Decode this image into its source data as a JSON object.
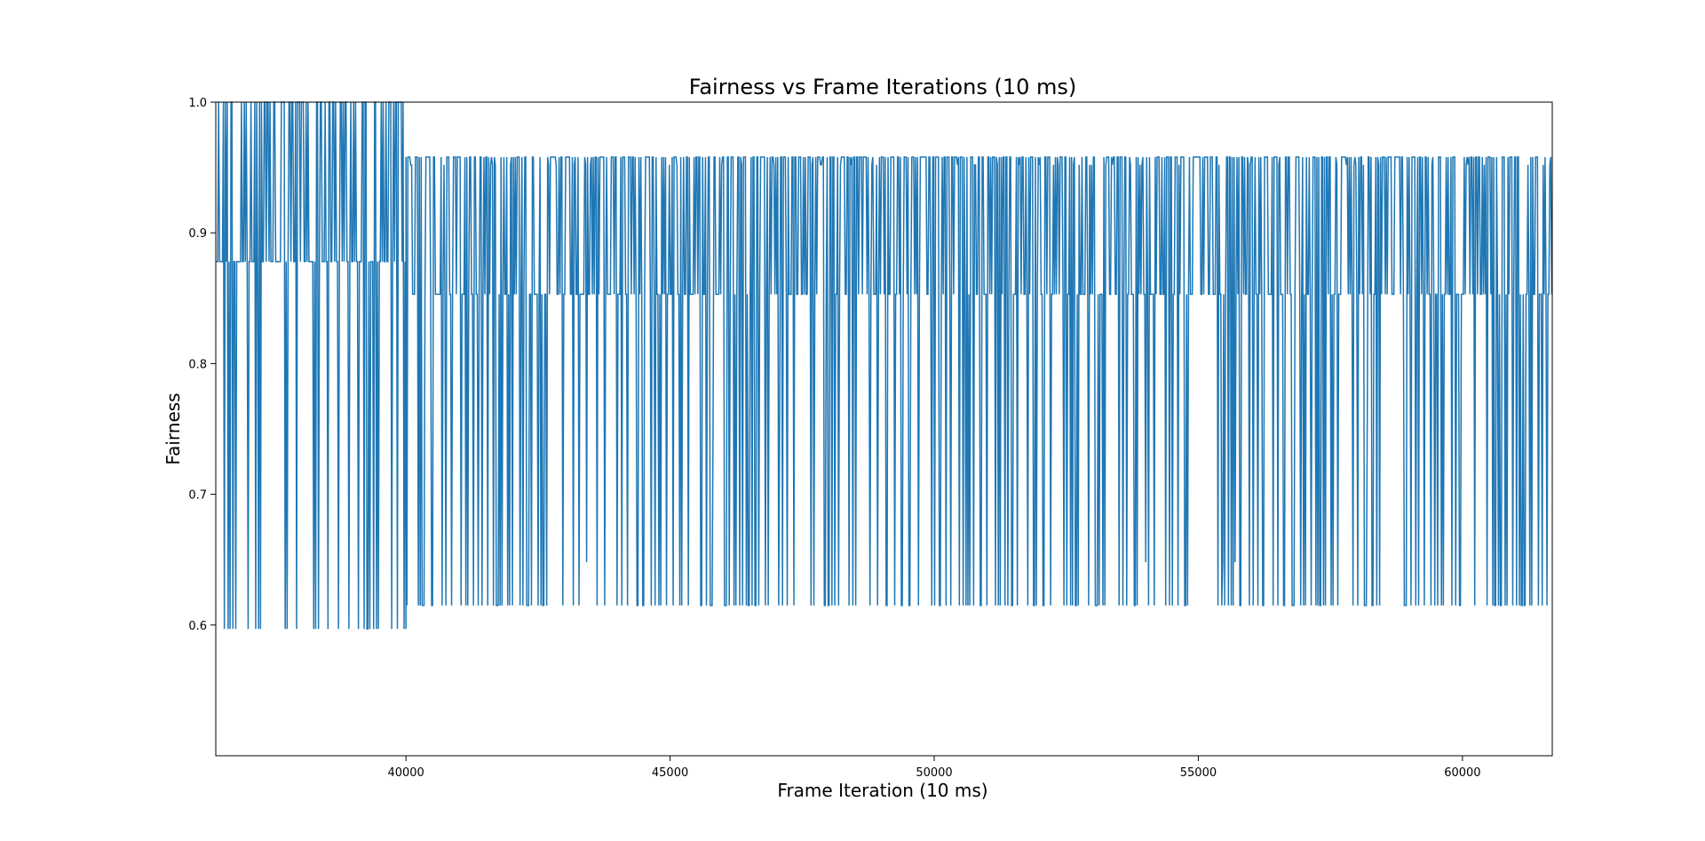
{
  "chart_data": {
    "type": "line",
    "title": "Fairness vs Frame Iterations (10 ms)",
    "xlabel": "Frame Iteration (10 ms)",
    "ylabel": "Fairness",
    "xlim": [
      36400,
      61700
    ],
    "ylim": [
      0.5,
      1.0
    ],
    "xticks": [
      40000,
      45000,
      50000,
      55000,
      60000
    ],
    "yticks": [
      0.6,
      0.7,
      0.8,
      0.9,
      1.0
    ],
    "xtick_labels": [
      "40000",
      "45000",
      "50000",
      "55000",
      "60000"
    ],
    "ytick_labels": [
      "0.6",
      "0.7",
      "0.8",
      "0.9",
      "1.0"
    ],
    "grid": false,
    "series": [
      {
        "color": "#1f77b4",
        "segments": [
          {
            "x_range": [
              36400,
              40000
            ],
            "levels": [
              1.0,
              0.878,
              0.597
            ],
            "level_weights": [
              0.4,
              0.4,
              0.2
            ]
          },
          {
            "x_range": [
              40000,
              61700
            ],
            "levels": [
              0.958,
              0.952,
              0.853,
              0.615
            ],
            "level_weights": [
              0.45,
              0.05,
              0.3,
              0.2
            ]
          }
        ],
        "occasional_values": [
          0.648,
          0.756
        ]
      }
    ]
  }
}
